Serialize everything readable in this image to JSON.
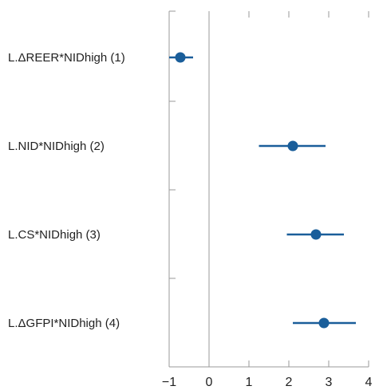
{
  "chart_data": {
    "type": "scatter",
    "subtype": "coefficient-plot",
    "categories": [
      "L.ΔREER*NIDhigh (1)",
      "L.NID*NIDhigh (2)",
      "L.CS*NIDhigh (3)",
      "L.ΔGFPI*NIDhigh (4)"
    ],
    "estimates": [
      -0.72,
      2.1,
      2.68,
      2.88
    ],
    "ci_low": [
      -1.0,
      1.25,
      1.95,
      2.1
    ],
    "ci_high": [
      -0.4,
      2.92,
      3.38,
      3.68
    ],
    "xlim": [
      -1,
      4
    ],
    "xticks": [
      -1,
      0,
      1,
      2,
      3,
      4
    ],
    "xtick_labels": [
      "−1",
      "0",
      "1",
      "2",
      "3",
      "4"
    ],
    "reference_line_x": 0,
    "title": "",
    "xlabel": "",
    "ylabel": "",
    "grid": false,
    "legend": "none",
    "colors": {
      "marker": "#1a5e9a",
      "axis": "#9a9a9a",
      "text": "#222222"
    }
  }
}
